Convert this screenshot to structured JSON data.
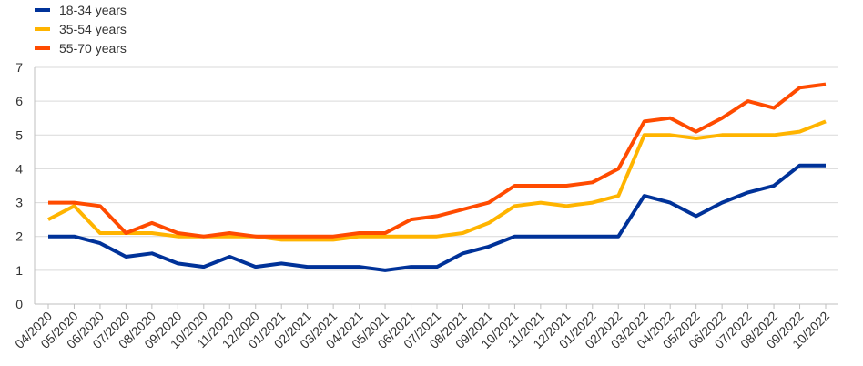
{
  "chart_data": {
    "type": "line",
    "title": "",
    "xlabel": "",
    "ylabel": "",
    "ylim": [
      0,
      7
    ],
    "yticks": [
      "0",
      "1",
      "2",
      "3",
      "4",
      "5",
      "6",
      "7"
    ],
    "grid": true,
    "legend_position": "top-left",
    "categories": [
      "04/2020",
      "05/2020",
      "06/2020",
      "07/2020",
      "08/2020",
      "09/2020",
      "10/2020",
      "11/2020",
      "12/2020",
      "01/2021",
      "02/2021",
      "03/2021",
      "04/2021",
      "05/2021",
      "06/2021",
      "07/2021",
      "08/2021",
      "09/2021",
      "10/2021",
      "11/2021",
      "12/2021",
      "01/2022",
      "02/2022",
      "03/2022",
      "04/2022",
      "05/2022",
      "06/2022",
      "07/2022",
      "08/2022",
      "09/2022",
      "10/2022"
    ],
    "series": [
      {
        "name": "18-34 years",
        "color": "#003299",
        "values": [
          2,
          2,
          1.8,
          1.4,
          1.5,
          1.2,
          1.1,
          1.4,
          1.1,
          1.2,
          1.1,
          1.1,
          1.1,
          1.0,
          1.1,
          1.1,
          1.5,
          1.7,
          2.0,
          2.0,
          2.0,
          2.0,
          2.0,
          3.2,
          3.0,
          2.6,
          3.0,
          3.3,
          3.5,
          4.1,
          4.1
        ]
      },
      {
        "name": "35-54 years",
        "color": "#FFB400",
        "values": [
          2.5,
          2.9,
          2.1,
          2.1,
          2.1,
          2.0,
          2.0,
          2.0,
          2.0,
          1.9,
          1.9,
          1.9,
          2.0,
          2.0,
          2.0,
          2.0,
          2.1,
          2.4,
          2.9,
          3.0,
          2.9,
          3.0,
          3.2,
          5.0,
          5.0,
          4.9,
          5.0,
          5.0,
          5.0,
          5.1,
          5.4
        ]
      },
      {
        "name": "55-70 years",
        "color": "#FF4B00",
        "values": [
          3.0,
          3.0,
          2.9,
          2.1,
          2.4,
          2.1,
          2.0,
          2.1,
          2.0,
          2.0,
          2.0,
          2.0,
          2.1,
          2.1,
          2.5,
          2.6,
          2.8,
          3.0,
          3.5,
          3.5,
          3.5,
          3.6,
          4.0,
          5.4,
          5.5,
          5.1,
          5.5,
          6.0,
          5.8,
          6.4,
          6.5
        ]
      }
    ]
  }
}
